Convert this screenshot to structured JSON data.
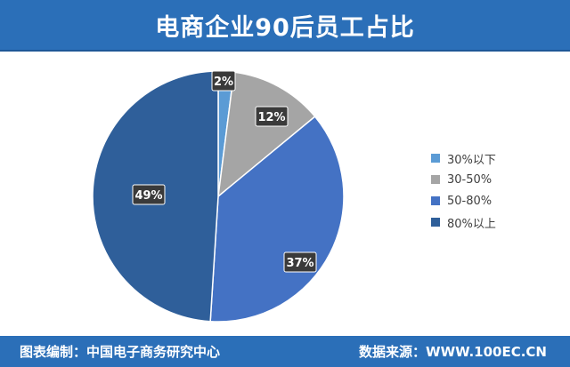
{
  "header": {
    "title": "电商企业90后员工占比"
  },
  "chart_data": {
    "type": "pie",
    "title": "电商企业90后员工占比",
    "legend_position": "right",
    "slices": [
      {
        "label": "30%以下",
        "value": 2,
        "display": "2%",
        "color": "#5b9bd5"
      },
      {
        "label": "30-50%",
        "value": 12,
        "display": "12%",
        "color": "#a5a5a5"
      },
      {
        "label": "50-80%",
        "value": 37,
        "display": "37%",
        "color": "#4472c4"
      },
      {
        "label": "80%以上",
        "value": 49,
        "display": "49%",
        "color": "#2f5f9a"
      }
    ]
  },
  "footer": {
    "left": "图表编制：中国电子商务研究中心",
    "right": "数据来源：WWW.100EC.CN"
  }
}
